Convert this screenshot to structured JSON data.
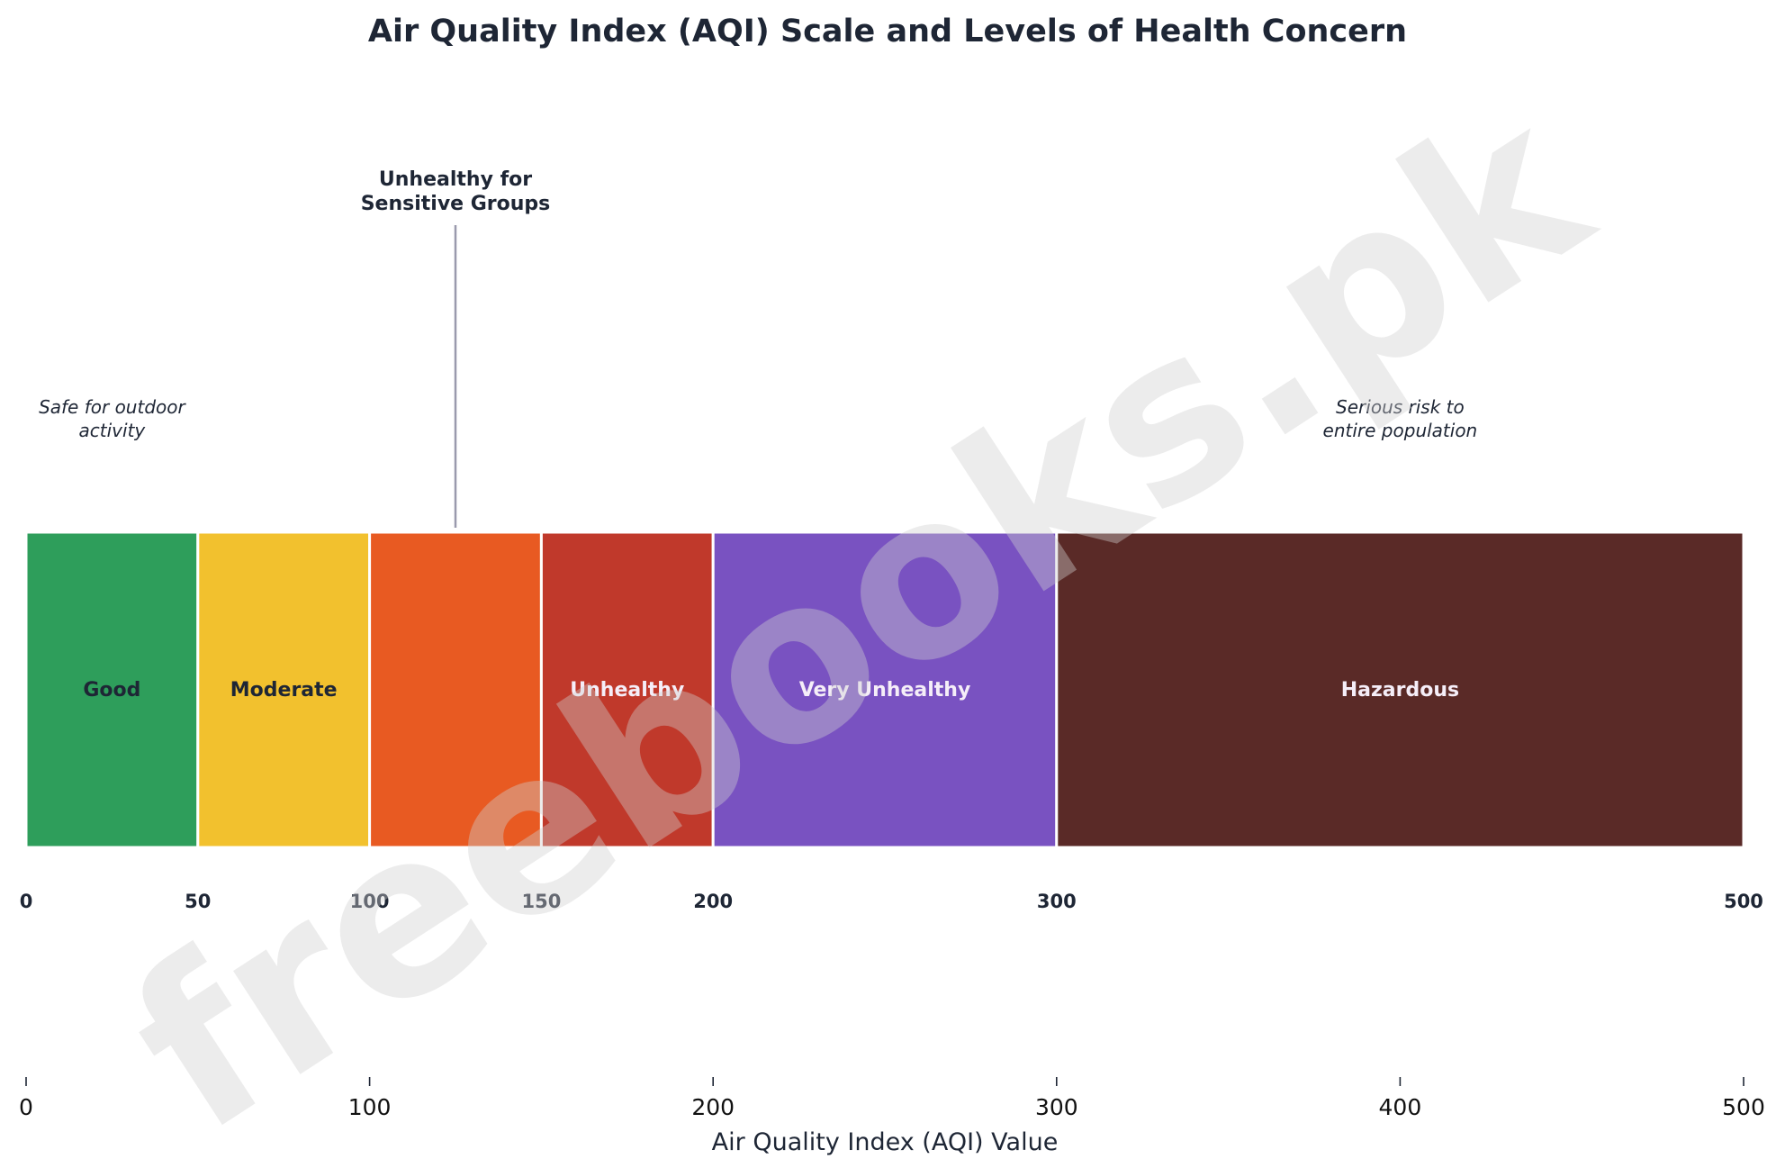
{
  "chart_data": {
    "type": "bar",
    "title": "Air Quality Index (AQI) Scale and Levels of Health Concern",
    "xlabel": "Air Quality Index (AQI) Value",
    "ylabel": "",
    "xlim": [
      0,
      500
    ],
    "grid": false,
    "segments": [
      {
        "label": "Good",
        "start": 0,
        "end": 50,
        "color": "#2e9e5b",
        "label_color": "#1e2635"
      },
      {
        "label": "Moderate",
        "start": 50,
        "end": 100,
        "color": "#f2c12e",
        "label_color": "#1e2635"
      },
      {
        "label": "Unhealthy for Sensitive Groups",
        "start": 100,
        "end": 150,
        "color": "#e85a22",
        "label_color": "#1e2635"
      },
      {
        "label": "Unhealthy",
        "start": 150,
        "end": 200,
        "color": "#c0392b",
        "label_color": "#f5eef8"
      },
      {
        "label": "Very Unhealthy",
        "start": 200,
        "end": 300,
        "color": "#7952c1",
        "label_color": "#f5eef8"
      },
      {
        "label": "Hazardous",
        "start": 300,
        "end": 500,
        "color": "#5a2a27",
        "label_color": "#f5eef8"
      }
    ],
    "callout": {
      "lines": [
        "Unhealthy for",
        "Sensitive Groups"
      ],
      "at": 125
    },
    "annotations": [
      {
        "lines": [
          "Safe for outdoor",
          "activity"
        ],
        "at": 25
      },
      {
        "lines": [
          "Serious risk to",
          "entire population"
        ],
        "at": 400
      }
    ],
    "boundary_labels": [
      0,
      50,
      100,
      150,
      200,
      300,
      500
    ],
    "x_ticks": [
      0,
      100,
      200,
      300,
      400,
      500
    ]
  },
  "watermark": "freebooks.pk",
  "colors": {
    "text": "#1e2635",
    "callout_line": "#9a9aad",
    "divider": "#ffffff",
    "watermark": "#cfcfcf"
  }
}
